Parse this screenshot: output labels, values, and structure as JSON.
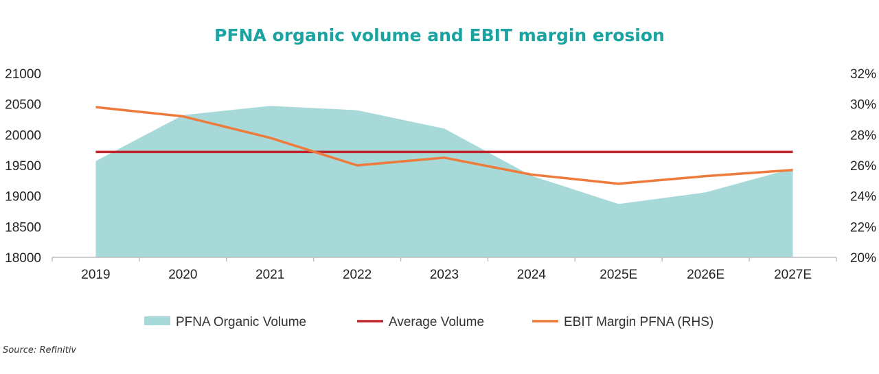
{
  "chart_data": {
    "type": "area",
    "title": "PFNA organic volume and EBIT margin erosion",
    "categories": [
      "2019",
      "2020",
      "2021",
      "2022",
      "2023",
      "2024",
      "2025E",
      "2026E",
      "2027E"
    ],
    "series": [
      {
        "name": "PFNA Organic Volume",
        "type": "area",
        "axis": "left",
        "values": [
          19570,
          20320,
          20470,
          20400,
          20100,
          19330,
          18870,
          19060,
          19450
        ]
      },
      {
        "name": "Average Volume",
        "type": "line",
        "axis": "left",
        "values": [
          19720,
          19720,
          19720,
          19720,
          19720,
          19720,
          19720,
          19720,
          19720
        ]
      },
      {
        "name": "EBIT Margin PFNA (RHS)",
        "type": "line",
        "axis": "right",
        "values": [
          29.8,
          29.2,
          27.8,
          26.0,
          26.5,
          25.4,
          24.8,
          25.3,
          25.7
        ]
      }
    ],
    "y_left": {
      "min": 18000,
      "max": 21000,
      "ticks": [
        "18000",
        "18500",
        "19000",
        "19500",
        "20000",
        "20500",
        "21000"
      ]
    },
    "y_right": {
      "min": 20,
      "max": 32,
      "ticks": [
        "20%",
        "22%",
        "24%",
        "26%",
        "28%",
        "30%",
        "32%"
      ]
    },
    "grid": false,
    "legend": "bottom",
    "colors": {
      "area": "#a8d9d9",
      "average": "#c0272d",
      "ebit": "#ee7a3b",
      "title": "#1aa3a0"
    }
  },
  "source": "Source: Refinitiv"
}
